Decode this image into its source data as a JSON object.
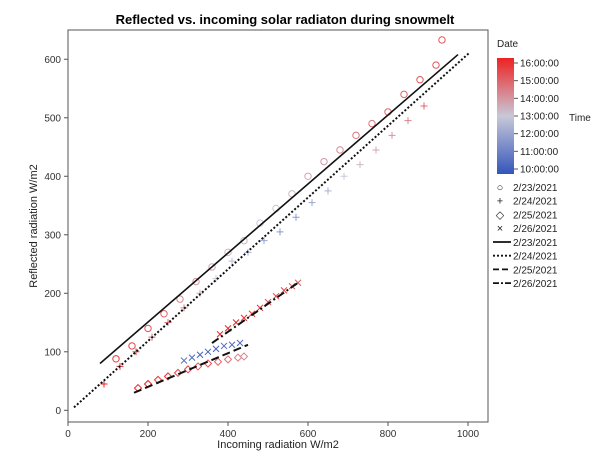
{
  "chart_data": {
    "type": "scatter",
    "title": "Reflected vs. incoming solar radiaton during snowmelt",
    "xlabel": "Incoming radiation W/m2",
    "ylabel": "Reflected radiation W/m2",
    "xlim": [
      0,
      1050
    ],
    "ylim": [
      -20,
      650
    ],
    "xticks": [
      0,
      200,
      400,
      600,
      800,
      1000
    ],
    "yticks": [
      0,
      100,
      200,
      300,
      400,
      500,
      600
    ],
    "grid": false,
    "legend_position": "right",
    "legend_title": "Date",
    "colorbar": {
      "label": "Time",
      "ticks": [
        "10:00:00",
        "11:00:00",
        "12:00:00",
        "13:00:00",
        "14:00:00",
        "15:00:00",
        "16:00:00"
      ],
      "low_color": "#3355bb",
      "mid_color": "#c8c8d8",
      "high_color": "#ee2222"
    },
    "marker_legend": [
      {
        "symbol": "○",
        "label": "2/23/2021"
      },
      {
        "symbol": "+",
        "label": "2/24/2021"
      },
      {
        "symbol": "◇",
        "label": "2/25/2021"
      },
      {
        "symbol": "×",
        "label": "2/26/2021"
      }
    ],
    "line_legend": [
      {
        "style": "solid",
        "label": "2/23/2021"
      },
      {
        "style": "dotted",
        "label": "2/24/2021"
      },
      {
        "style": "dashed",
        "label": "2/25/2021"
      },
      {
        "style": "dashdot",
        "label": "2/26/2021"
      }
    ],
    "fit_lines": [
      {
        "date": "2/23/2021",
        "style": "solid",
        "x": [
          80,
          975
        ],
        "y": [
          80,
          608
        ]
      },
      {
        "date": "2/24/2021",
        "style": "dotted",
        "x": [
          15,
          1005
        ],
        "y": [
          5,
          612
        ]
      },
      {
        "date": "2/25/2021",
        "style": "dashed",
        "x": [
          165,
          450
        ],
        "y": [
          30,
          112
        ]
      },
      {
        "date": "2/26/2021",
        "style": "dashdot",
        "x": [
          360,
          575
        ],
        "y": [
          115,
          218
        ]
      }
    ],
    "series": [
      {
        "date": "2/23/2021",
        "marker": "circle",
        "x": [
          120,
          160,
          200,
          240,
          280,
          320,
          360,
          400,
          440,
          480,
          520,
          560,
          600,
          640,
          680,
          720,
          760,
          800,
          840,
          880,
          920,
          935
        ],
        "y": [
          88,
          110,
          140,
          165,
          190,
          220,
          245,
          270,
          290,
          320,
          345,
          370,
          400,
          425,
          445,
          470,
          490,
          510,
          540,
          565,
          590,
          633
        ],
        "time": [
          0.95,
          0.9,
          0.85,
          0.8,
          0.7,
          0.65,
          0.6,
          0.55,
          0.55,
          0.5,
          0.5,
          0.55,
          0.6,
          0.65,
          0.7,
          0.75,
          0.75,
          0.8,
          0.8,
          0.85,
          0.85,
          0.85
        ]
      },
      {
        "date": "2/24/2021",
        "marker": "plus",
        "x": [
          90,
          130,
          170,
          210,
          250,
          290,
          330,
          370,
          410,
          450,
          490,
          530,
          570,
          610,
          650,
          690,
          730,
          770,
          810,
          850,
          890
        ],
        "y": [
          45,
          75,
          100,
          125,
          150,
          175,
          200,
          225,
          255,
          270,
          290,
          305,
          330,
          355,
          375,
          400,
          420,
          445,
          470,
          495,
          520
        ],
        "time": [
          1.0,
          0.95,
          0.9,
          0.8,
          0.75,
          0.7,
          0.6,
          0.5,
          0.45,
          0.4,
          0.35,
          0.3,
          0.3,
          0.35,
          0.4,
          0.5,
          0.55,
          0.6,
          0.65,
          0.7,
          0.8
        ]
      },
      {
        "date": "2/25/2021",
        "marker": "diamond",
        "x": [
          175,
          200,
          225,
          250,
          275,
          300,
          325,
          350,
          375,
          400,
          425,
          440
        ],
        "y": [
          38,
          45,
          52,
          58,
          64,
          70,
          75,
          80,
          83,
          87,
          90,
          92
        ],
        "time": [
          1.0,
          1.0,
          0.95,
          0.95,
          0.9,
          0.9,
          0.85,
          0.85,
          0.8,
          0.75,
          0.7,
          0.7
        ]
      },
      {
        "date": "2/26/2021",
        "marker": "cross",
        "x": [
          290,
          310,
          330,
          350,
          370,
          390,
          410,
          430,
          380,
          400,
          420,
          440,
          460,
          480,
          500,
          520,
          540,
          560,
          575
        ],
        "y": [
          85,
          90,
          95,
          100,
          105,
          110,
          112,
          115,
          130,
          140,
          150,
          158,
          165,
          175,
          185,
          195,
          205,
          212,
          218
        ],
        "time": [
          0.1,
          0.1,
          0.05,
          0.05,
          0.05,
          0.1,
          0.1,
          0.1,
          1.0,
          1.0,
          1.0,
          0.95,
          0.95,
          0.95,
          0.9,
          0.9,
          0.9,
          0.85,
          0.85
        ]
      }
    ]
  }
}
